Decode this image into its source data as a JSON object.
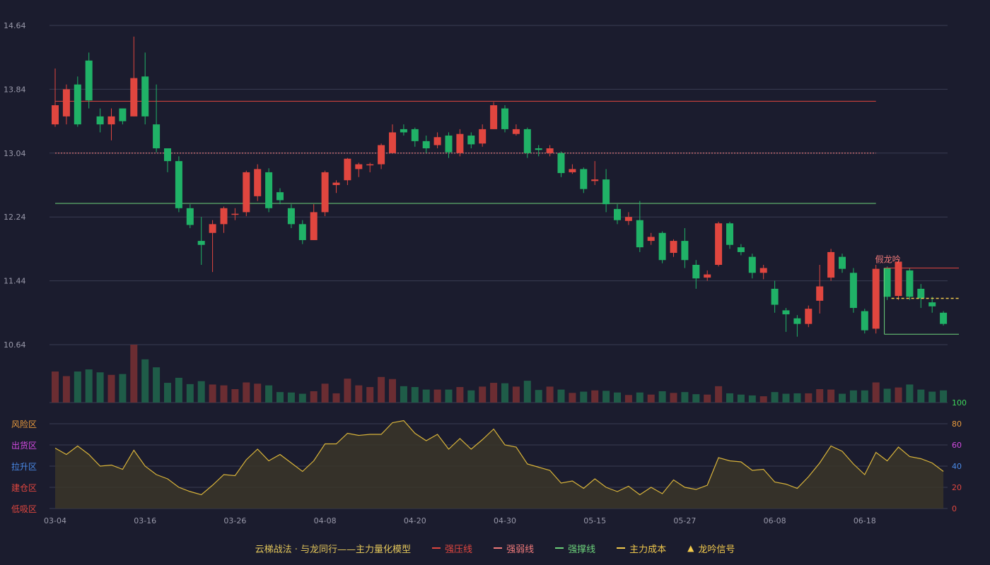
{
  "colors": {
    "up": "#e0463f",
    "down": "#20b267",
    "up_volume": "#6b2d32",
    "down_volume": "#1f5c48",
    "pressure": "#e0463f",
    "weak": "#f07a7a",
    "support": "#6cd27a",
    "cost": "#f2c94c",
    "oscillator": "#d9b43a",
    "grid": "#3a3c52",
    "axis_text": "#9a9aab"
  },
  "legend": {
    "title": "云梯战法 · 与龙同行——主力量化模型",
    "pressure": "强压线",
    "weak": "强弱线",
    "support": "强撑线",
    "cost": "主力成本",
    "signal_icon": "▲",
    "signal": "龙吟信号"
  },
  "chart_data": {
    "type": "candlestick",
    "price_axis": {
      "ylim": [
        10.64,
        14.64
      ],
      "ticks": [
        "14.64",
        "13.84",
        "13.04",
        "12.24",
        "11.44",
        "10.64"
      ]
    },
    "x_ticks": [
      {
        "index": 0,
        "label": "03-04"
      },
      {
        "index": 8,
        "label": "03-16"
      },
      {
        "index": 16,
        "label": "03-26"
      },
      {
        "index": 24,
        "label": "04-08"
      },
      {
        "index": 32,
        "label": "04-20"
      },
      {
        "index": 40,
        "label": "04-30"
      },
      {
        "index": 48,
        "label": "05-15"
      },
      {
        "index": 56,
        "label": "05-27"
      },
      {
        "index": 64,
        "label": "06-08"
      },
      {
        "index": 72,
        "label": "06-18"
      }
    ],
    "candles": [
      [
        13.4,
        13.64,
        13.37,
        14.1
      ],
      [
        13.5,
        13.84,
        13.4,
        13.9
      ],
      [
        13.9,
        13.4,
        13.37,
        14.0
      ],
      [
        14.2,
        13.7,
        13.6,
        14.3
      ],
      [
        13.5,
        13.4,
        13.3,
        13.6
      ],
      [
        13.4,
        13.5,
        13.2,
        13.6
      ],
      [
        13.6,
        13.44,
        13.4,
        13.6
      ],
      [
        13.5,
        13.98,
        13.5,
        14.5
      ],
      [
        14.0,
        13.5,
        13.4,
        14.3
      ],
      [
        13.4,
        13.1,
        13.05,
        13.9
      ],
      [
        13.1,
        12.94,
        12.8,
        13.1
      ],
      [
        12.94,
        12.35,
        12.3,
        13.0
      ],
      [
        12.35,
        12.14,
        12.1,
        12.4
      ],
      [
        11.94,
        11.89,
        11.64,
        12.24
      ],
      [
        12.04,
        12.15,
        11.55,
        12.2
      ],
      [
        12.15,
        12.35,
        12.04,
        12.37
      ],
      [
        12.28,
        12.28,
        12.2,
        12.35
      ],
      [
        12.3,
        12.8,
        12.25,
        12.82
      ],
      [
        12.5,
        12.84,
        12.44,
        12.9
      ],
      [
        12.8,
        12.35,
        12.3,
        12.85
      ],
      [
        12.55,
        12.45,
        12.4,
        12.6
      ],
      [
        12.35,
        12.15,
        12.1,
        12.4
      ],
      [
        12.15,
        11.95,
        11.9,
        12.2
      ],
      [
        11.95,
        12.3,
        11.95,
        12.4
      ],
      [
        12.3,
        12.8,
        12.25,
        12.82
      ],
      [
        12.64,
        12.67,
        12.54,
        12.7
      ],
      [
        12.7,
        12.97,
        12.64,
        12.98
      ],
      [
        12.84,
        12.9,
        12.74,
        12.92
      ],
      [
        12.9,
        12.9,
        12.8,
        12.92
      ],
      [
        12.9,
        13.14,
        12.84,
        13.16
      ],
      [
        13.04,
        13.3,
        13.04,
        13.4
      ],
      [
        13.34,
        13.3,
        13.26,
        13.4
      ],
      [
        13.34,
        13.19,
        13.12,
        13.36
      ],
      [
        13.19,
        13.1,
        13.04,
        13.26
      ],
      [
        13.14,
        13.24,
        13.1,
        13.3
      ],
      [
        13.26,
        13.05,
        12.98,
        13.3
      ],
      [
        13.04,
        13.28,
        13.0,
        13.34
      ],
      [
        13.26,
        13.15,
        13.1,
        13.3
      ],
      [
        13.16,
        13.34,
        13.12,
        13.4
      ],
      [
        13.34,
        13.64,
        13.34,
        13.68
      ],
      [
        13.6,
        13.34,
        13.3,
        13.64
      ],
      [
        13.28,
        13.34,
        13.26,
        13.4
      ],
      [
        13.34,
        13.04,
        12.98,
        13.36
      ],
      [
        13.1,
        13.08,
        13.0,
        13.14
      ],
      [
        13.04,
        13.1,
        13.0,
        13.14
      ],
      [
        13.04,
        12.79,
        12.74,
        13.06
      ],
      [
        12.8,
        12.84,
        12.78,
        12.9
      ],
      [
        12.84,
        12.59,
        12.54,
        12.86
      ],
      [
        12.69,
        12.71,
        12.64,
        12.94
      ],
      [
        12.71,
        12.4,
        12.3,
        12.84
      ],
      [
        12.34,
        12.2,
        12.15,
        12.4
      ],
      [
        12.19,
        12.24,
        12.14,
        12.3
      ],
      [
        12.2,
        11.86,
        11.8,
        12.44
      ],
      [
        11.94,
        11.99,
        11.89,
        12.04
      ],
      [
        12.04,
        11.7,
        11.66,
        12.06
      ],
      [
        11.79,
        11.94,
        11.74,
        11.96
      ],
      [
        11.94,
        11.7,
        11.6,
        12.1
      ],
      [
        11.64,
        11.47,
        11.34,
        11.7
      ],
      [
        11.48,
        11.52,
        11.44,
        11.57
      ],
      [
        11.64,
        12.16,
        11.62,
        12.18
      ],
      [
        12.16,
        11.89,
        11.84,
        12.18
      ],
      [
        11.86,
        11.8,
        11.76,
        11.9
      ],
      [
        11.74,
        11.54,
        11.47,
        11.78
      ],
      [
        11.54,
        11.6,
        11.46,
        11.64
      ],
      [
        11.34,
        11.14,
        11.04,
        11.44
      ],
      [
        11.07,
        11.02,
        10.8,
        11.1
      ],
      [
        10.97,
        10.9,
        10.74,
        11.01
      ],
      [
        10.9,
        11.09,
        10.86,
        11.13
      ],
      [
        11.19,
        11.37,
        11.03,
        11.64
      ],
      [
        11.48,
        11.8,
        11.44,
        11.84
      ],
      [
        11.74,
        11.59,
        11.54,
        11.78
      ],
      [
        11.54,
        11.1,
        11.04,
        11.6
      ],
      [
        11.06,
        10.82,
        10.78,
        11.09
      ],
      [
        10.84,
        11.59,
        10.78,
        11.64
      ],
      [
        11.6,
        11.24,
        11.2,
        11.62
      ],
      [
        11.25,
        11.68,
        11.2,
        11.7
      ],
      [
        11.57,
        11.24,
        11.2,
        11.6
      ],
      [
        11.34,
        11.22,
        11.1,
        11.4
      ],
      [
        11.17,
        11.12,
        11.04,
        11.24
      ],
      [
        11.04,
        10.9,
        10.88,
        11.06
      ]
    ],
    "volume": [
      0.74,
      0.63,
      0.74,
      0.79,
      0.72,
      0.66,
      0.68,
      1.38,
      1.03,
      0.84,
      0.47,
      0.59,
      0.44,
      0.51,
      0.43,
      0.41,
      0.32,
      0.48,
      0.45,
      0.41,
      0.25,
      0.24,
      0.21,
      0.27,
      0.45,
      0.22,
      0.57,
      0.41,
      0.37,
      0.61,
      0.56,
      0.39,
      0.37,
      0.31,
      0.31,
      0.31,
      0.37,
      0.29,
      0.38,
      0.47,
      0.46,
      0.38,
      0.52,
      0.3,
      0.38,
      0.31,
      0.23,
      0.26,
      0.29,
      0.28,
      0.24,
      0.18,
      0.24,
      0.19,
      0.27,
      0.23,
      0.25,
      0.2,
      0.19,
      0.39,
      0.22,
      0.19,
      0.17,
      0.15,
      0.25,
      0.21,
      0.22,
      0.22,
      0.32,
      0.31,
      0.21,
      0.29,
      0.29,
      0.48,
      0.33,
      0.36,
      0.43,
      0.31,
      0.26,
      0.29
    ],
    "levels": {
      "pressure": {
        "value": 13.69,
        "from": 0,
        "to": 73
      },
      "weak": {
        "value": 13.04,
        "from": 0,
        "to": 73
      },
      "support": {
        "value": 12.41,
        "from": 0,
        "to": 73
      }
    },
    "signal_box": {
      "label": "假龙吟",
      "from": 74,
      "to": 80,
      "upper": 11.6,
      "cost": 11.22,
      "lower": 10.77
    },
    "oscillator": {
      "ylim": [
        0,
        100
      ],
      "ticks": [
        "100",
        "80",
        "60",
        "40",
        "20",
        "0"
      ],
      "zones": [
        "风险区",
        "出货区",
        "拉升区",
        "建仓区",
        "低吸区"
      ],
      "zone_colors": [
        "#e89a3c",
        "#d24ae0",
        "#4a8ae8",
        "#e0463f",
        "#e0463f"
      ],
      "values": [
        57,
        51,
        59,
        51,
        40,
        41,
        37,
        55,
        40,
        32,
        28,
        20,
        16,
        13,
        22,
        32,
        31,
        46,
        56,
        45,
        51,
        43,
        35,
        45,
        61,
        61,
        71,
        69,
        70,
        70,
        81,
        83,
        71,
        64,
        70,
        56,
        66,
        56,
        65,
        75,
        60,
        58,
        42,
        39,
        36,
        24,
        26,
        19,
        28,
        20,
        16,
        21,
        13,
        20,
        14,
        27,
        20,
        18,
        22,
        48,
        45,
        44,
        36,
        37,
        25,
        23,
        19,
        30,
        43,
        59,
        54,
        42,
        32,
        53,
        45,
        58,
        49,
        47,
        43,
        35
      ]
    }
  }
}
